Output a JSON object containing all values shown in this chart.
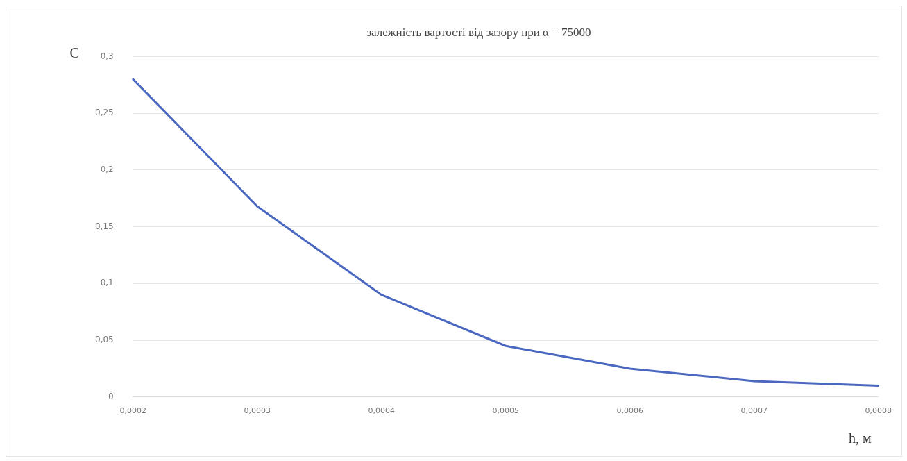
{
  "chart_data": {
    "type": "line",
    "title": "залежність вартості від зазору при α = 75000",
    "xlabel": "h, м",
    "ylabel": "C",
    "categories": [
      "0,0002",
      "0,0003",
      "0,0004",
      "0,0005",
      "0,0006",
      "0,0007",
      "0,0008"
    ],
    "series": [
      {
        "color": "#4a68c0",
        "values": [
          0.28,
          0.168,
          0.09,
          0.045,
          0.025,
          0.014,
          0.01
        ]
      }
    ],
    "ylim": [
      0,
      0.3
    ],
    "yticks": [
      {
        "value": 0,
        "label": "0"
      },
      {
        "value": 0.05,
        "label": "0,05"
      },
      {
        "value": 0.1,
        "label": "0,1"
      },
      {
        "value": 0.15,
        "label": "0,15"
      },
      {
        "value": 0.2,
        "label": "0,2"
      },
      {
        "value": 0.25,
        "label": "0,25"
      },
      {
        "value": 0.3,
        "label": "0,3"
      }
    ],
    "grid": "y",
    "legend": false,
    "marker": "none",
    "line_style": "solid"
  }
}
